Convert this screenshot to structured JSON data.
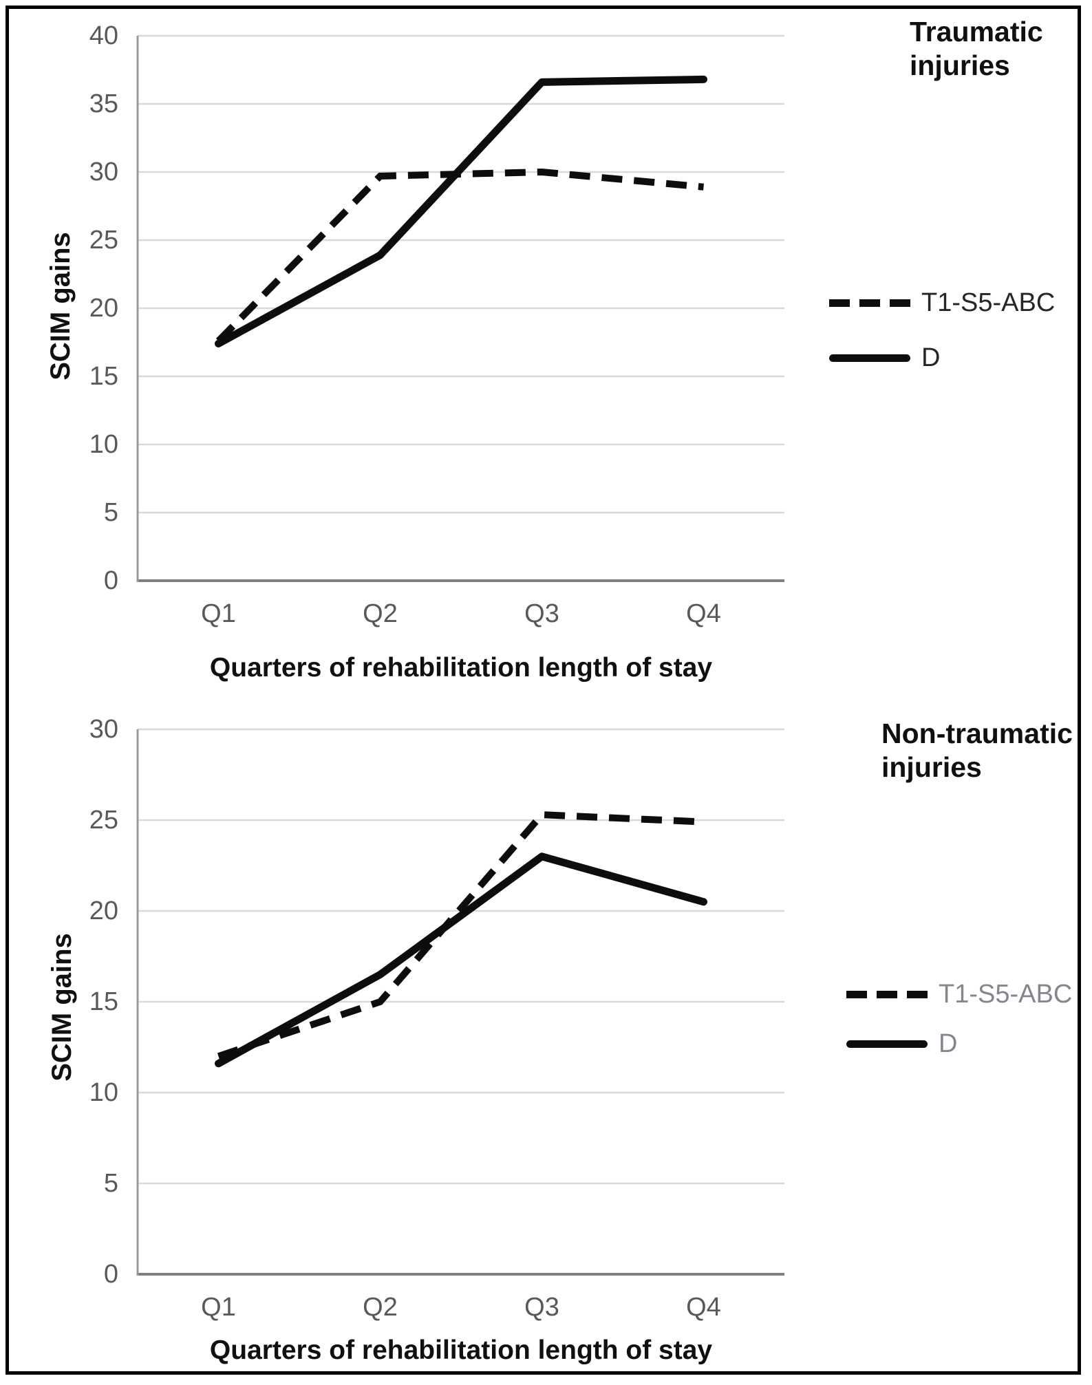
{
  "figure": {
    "background": "#ffffff",
    "border_color": "#000000",
    "series_color": "#0d0d0d",
    "gridline_color": "#d9d9d9",
    "axis_color": "#7f7f7f",
    "tick_label_color": "#595959"
  },
  "chart_data": [
    {
      "type": "line",
      "title": "Traumatic injuries",
      "title_lines": [
        "Traumatic",
        "injuries"
      ],
      "ylabel": "SCIM gains",
      "xlabel": "Quarters of rehabilitation length of stay",
      "categories": [
        "Q1",
        "Q2",
        "Q3",
        "Q4"
      ],
      "ylim": [
        0,
        40
      ],
      "ytick_step": 5,
      "grid": "horizontal",
      "legend_position": "right",
      "series": [
        {
          "name": "T1-S5-ABC",
          "line_style": "dashed",
          "color": "#0d0d0d",
          "values": [
            17.6,
            29.7,
            30.0,
            28.9
          ]
        },
        {
          "name": "D",
          "line_style": "solid",
          "color": "#0d0d0d",
          "values": [
            17.4,
            23.9,
            36.6,
            36.8
          ]
        }
      ]
    },
    {
      "type": "line",
      "title": "Non-traumatic injuries",
      "title_lines": [
        "Non-traumatic",
        "injuries"
      ],
      "ylabel": "SCIM gains",
      "xlabel": "Quarters of rehabilitation length of stay",
      "categories": [
        "Q1",
        "Q2",
        "Q3",
        "Q4"
      ],
      "ylim": [
        0,
        30
      ],
      "ytick_step": 5,
      "grid": "horizontal",
      "legend_position": "right",
      "series": [
        {
          "name": "T1-S5-ABC",
          "line_style": "dashed",
          "color": "#0d0d0d",
          "values": [
            12.0,
            15.0,
            25.3,
            24.9
          ]
        },
        {
          "name": "D",
          "line_style": "solid",
          "color": "#0d0d0d",
          "values": [
            11.6,
            16.5,
            23.0,
            20.5
          ]
        }
      ]
    }
  ]
}
